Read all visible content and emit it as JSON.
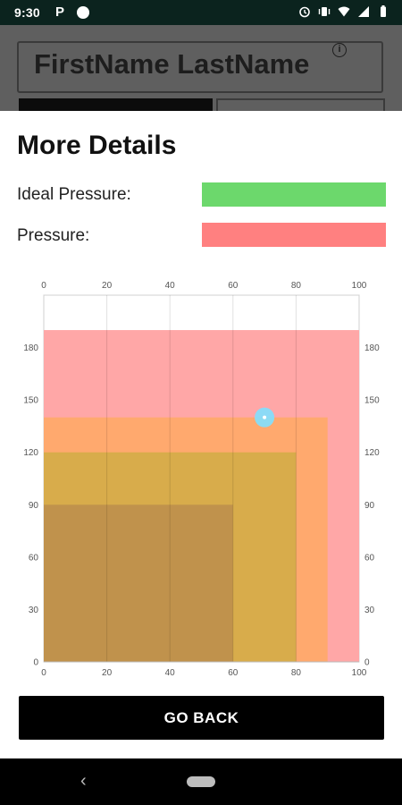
{
  "status_bar": {
    "time": "9:30",
    "app_letter": "P",
    "icons": [
      "alarm-icon",
      "vibrate-icon",
      "wifi-icon",
      "signal-icon",
      "battery-icon"
    ]
  },
  "background_app": {
    "user_name": "FirstName LastName",
    "info_glyph": "i"
  },
  "sheet": {
    "title": "More Details",
    "legend": [
      {
        "label": "Ideal Pressure:",
        "color": "#6cd86c"
      },
      {
        "label": "Pressure:",
        "color": "#ff8080"
      }
    ],
    "button_label": "GO BACK"
  },
  "chart_data": {
    "type": "area",
    "x_ticks": [
      0,
      20,
      40,
      60,
      80,
      100
    ],
    "y_ticks": [
      0,
      30,
      60,
      90,
      120,
      150,
      180
    ],
    "xlim": [
      0,
      100
    ],
    "ylim": [
      0,
      210
    ],
    "grid": true,
    "regions": [
      {
        "x_max": 100,
        "y_max": 190,
        "color": "#ffa7a7"
      },
      {
        "x_max": 90,
        "y_max": 140,
        "color": "#ffa96e"
      },
      {
        "x_max": 80,
        "y_max": 120,
        "color": "#d8ac4b"
      },
      {
        "x_max": 60,
        "y_max": 90,
        "color": "#c0924c"
      }
    ],
    "point": {
      "x": 70,
      "y": 140,
      "color": "#7fe0ff"
    }
  },
  "nav_bar": {
    "back_glyph": "‹"
  }
}
